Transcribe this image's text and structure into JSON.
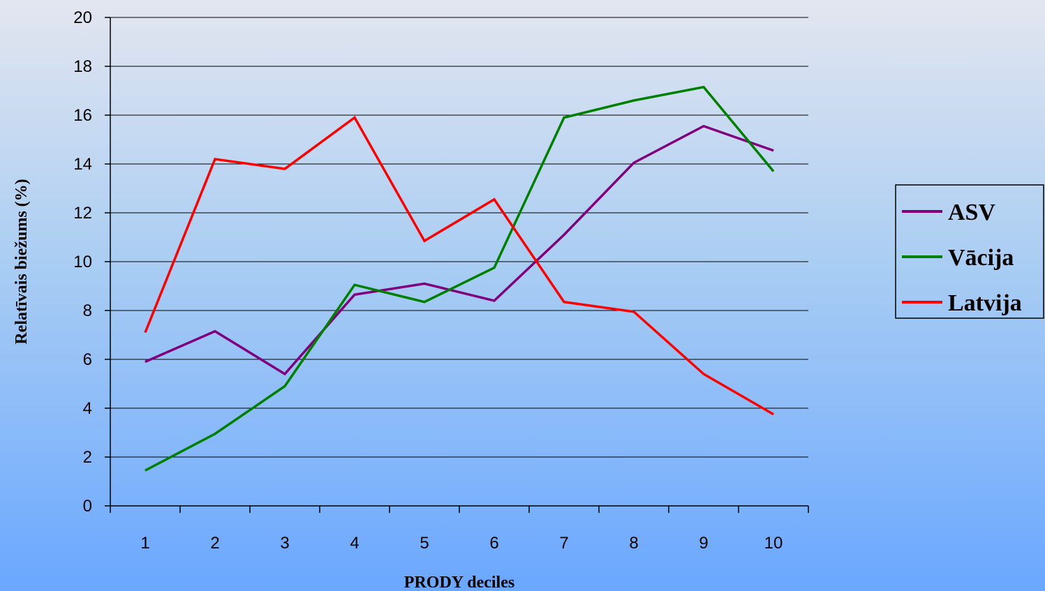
{
  "chart_data": {
    "type": "line",
    "xlabel": "PRODY deciles",
    "ylabel": "Relatīvais biežums (%)",
    "categories": [
      "1",
      "2",
      "3",
      "4",
      "5",
      "6",
      "7",
      "8",
      "9",
      "10"
    ],
    "ylim": [
      0,
      20
    ],
    "yticks": [
      "0",
      "2",
      "4",
      "6",
      "8",
      "10",
      "12",
      "14",
      "16",
      "18",
      "20"
    ],
    "grid": "horizontal",
    "legend_position": "right",
    "series": [
      {
        "name": "ASV",
        "color": "#800080",
        "values": [
          5.9,
          7.15,
          5.4,
          8.65,
          9.1,
          8.4,
          11.1,
          14.05,
          15.55,
          14.55
        ]
      },
      {
        "name": "Vācija",
        "color": "#008000",
        "values": [
          1.45,
          2.95,
          4.9,
          9.05,
          8.35,
          9.75,
          15.9,
          16.6,
          17.15,
          13.7
        ]
      },
      {
        "name": "Latvija",
        "color": "#ff0000",
        "values": [
          7.1,
          14.2,
          13.8,
          15.9,
          10.85,
          12.55,
          8.35,
          7.95,
          5.4,
          3.75
        ]
      }
    ]
  }
}
